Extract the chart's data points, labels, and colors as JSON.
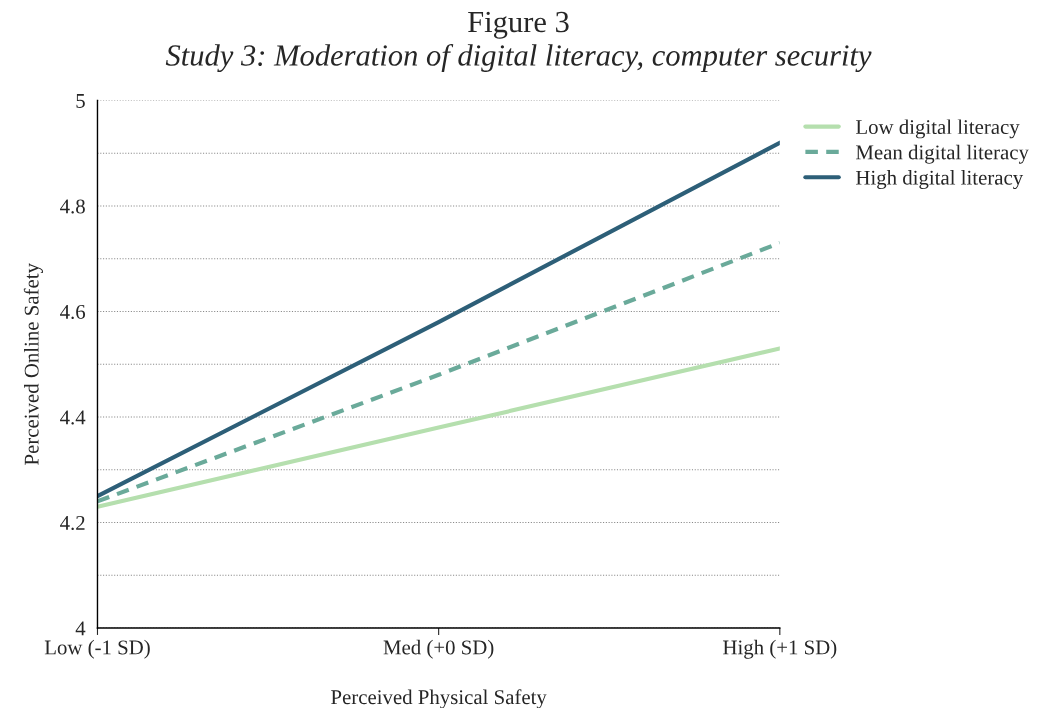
{
  "chart_data": {
    "type": "line",
    "title": "Figure 3",
    "subtitle": "Study 3: Moderation of digital literacy, computer security",
    "xlabel": "Perceived Physical Safety",
    "ylabel": "Perceived Online Safety",
    "categories": [
      "Low (-1 SD)",
      "Med (+0 SD)",
      "High (+1 SD)"
    ],
    "series": [
      {
        "name": "Low digital literacy",
        "color": "#b5dfae",
        "line_style": "solid",
        "values": [
          4.23,
          4.38,
          4.53
        ]
      },
      {
        "name": "Mean digital literacy",
        "color": "#6aaa9a",
        "line_style": "dashed",
        "values": [
          4.24,
          4.48,
          4.73
        ]
      },
      {
        "name": "High digital literacy",
        "color": "#2d5f78",
        "line_style": "solid",
        "values": [
          4.25,
          4.58,
          4.92
        ]
      }
    ],
    "ylim": [
      4,
      5
    ],
    "yticks": [
      4,
      {
        "value": 4.1,
        "label": null
      },
      4.2,
      {
        "value": 4.3,
        "label": null
      },
      4.4,
      {
        "value": 4.5,
        "label": null
      },
      4.6,
      {
        "value": 4.7,
        "label": null
      },
      4.8,
      {
        "value": 4.9,
        "label": null
      },
      5
    ],
    "grid": "y",
    "legend": "top right",
    "marker": "none"
  }
}
